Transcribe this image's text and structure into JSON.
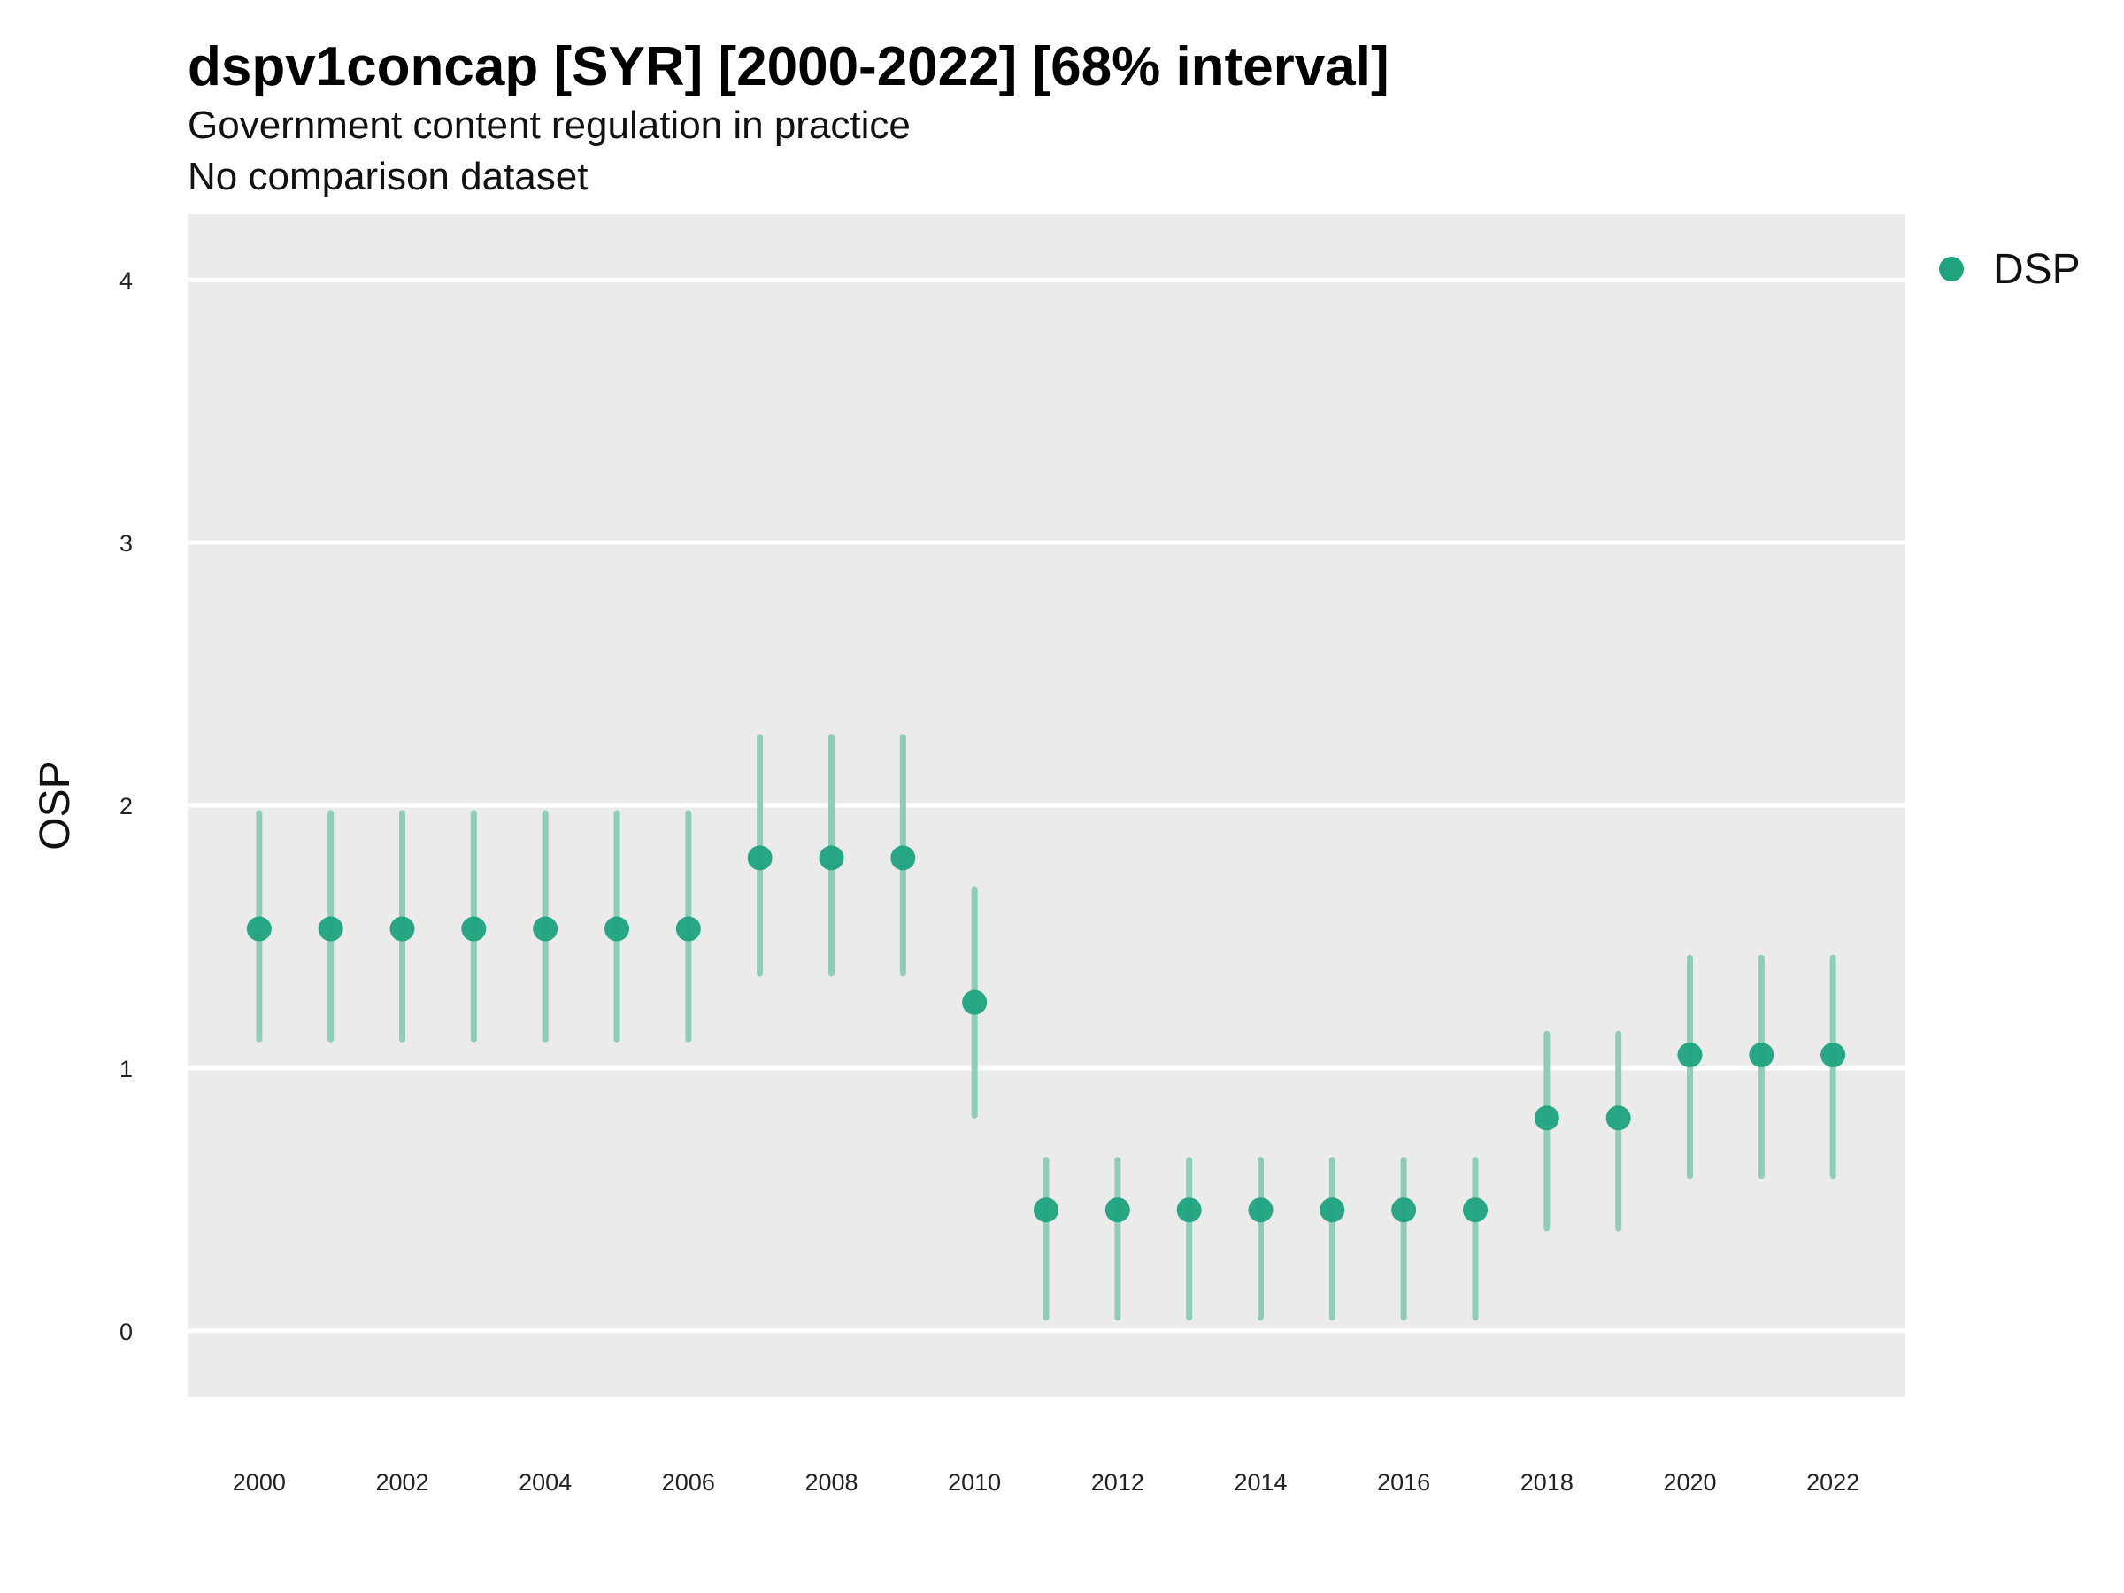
{
  "chart_data": {
    "type": "scatter",
    "title": "dspv1concap [SYR] [2000-2022] [68% interval]",
    "subtitle": "Government content regulation in practice",
    "subtitle2": "No comparison dataset",
    "ylabel": "OSP",
    "xlabel": "",
    "ylim": [
      -0.25,
      4.25
    ],
    "xlim": [
      1999,
      2023
    ],
    "yticks": [
      0,
      1,
      2,
      3,
      4
    ],
    "xticks": [
      2000,
      2002,
      2004,
      2006,
      2008,
      2010,
      2012,
      2014,
      2016,
      2018,
      2020,
      2022
    ],
    "grid": true,
    "legend": {
      "placement": "top-right",
      "entries": [
        "DSP"
      ]
    },
    "colors": {
      "point": "#1fa37e",
      "interval": "#8fcdb8",
      "panel": "#ebebeb",
      "gridline": "#ffffff"
    },
    "series": [
      {
        "name": "DSP",
        "x": [
          2000,
          2001,
          2002,
          2003,
          2004,
          2005,
          2006,
          2007,
          2008,
          2009,
          2010,
          2011,
          2012,
          2013,
          2014,
          2015,
          2016,
          2017,
          2018,
          2019,
          2020,
          2021,
          2022
        ],
        "y": [
          1.53,
          1.53,
          1.53,
          1.53,
          1.53,
          1.53,
          1.53,
          1.8,
          1.8,
          1.8,
          1.25,
          0.46,
          0.46,
          0.46,
          0.46,
          0.46,
          0.46,
          0.46,
          0.81,
          0.81,
          1.05,
          1.05,
          1.05
        ],
        "lower": [
          1.11,
          1.11,
          1.11,
          1.11,
          1.11,
          1.11,
          1.11,
          1.36,
          1.36,
          1.36,
          0.82,
          0.05,
          0.05,
          0.05,
          0.05,
          0.05,
          0.05,
          0.05,
          0.39,
          0.39,
          0.59,
          0.59,
          0.59
        ],
        "upper": [
          1.97,
          1.97,
          1.97,
          1.97,
          1.97,
          1.97,
          1.97,
          2.26,
          2.26,
          2.26,
          1.68,
          0.65,
          0.65,
          0.65,
          0.65,
          0.65,
          0.65,
          0.65,
          1.13,
          1.13,
          1.42,
          1.42,
          1.42
        ]
      }
    ]
  }
}
